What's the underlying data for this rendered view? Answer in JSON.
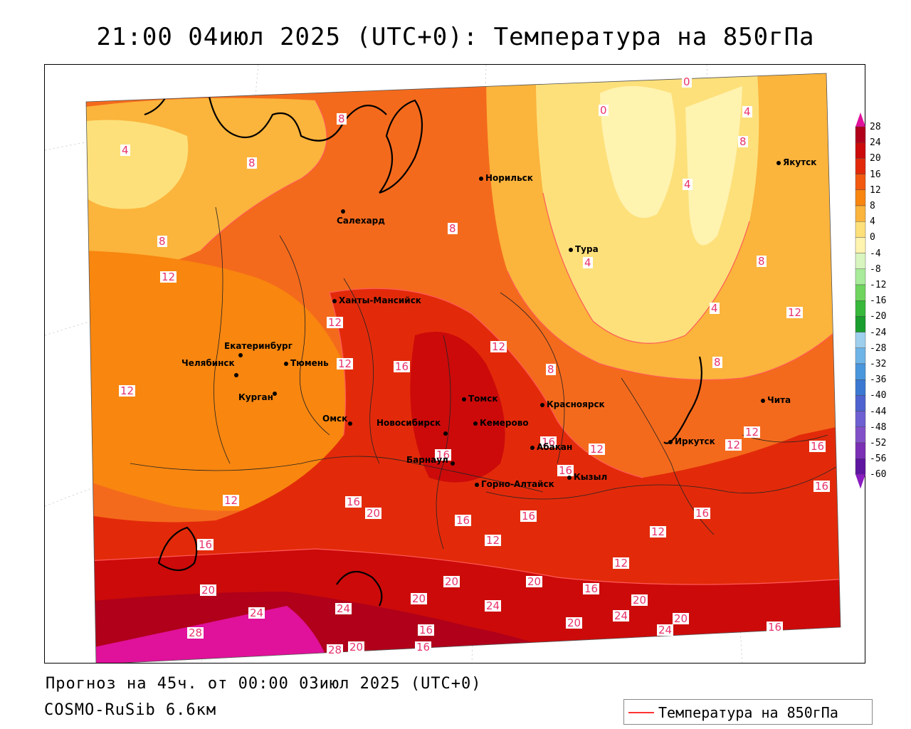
{
  "title": "21:00 04июл 2025 (UTC+0): Температура на 850гПа",
  "forecast_info": "Прогноз на 45ч. от 00:00 03июл 2025 (UTC+0)",
  "model_name": "COSMO-RuSib 6.6км",
  "legend_label": "Температура на 850гПа",
  "colorbar": {
    "ticks": [
      "28",
      "24",
      "20",
      "16",
      "12",
      "8",
      "4",
      "0",
      "-4",
      "-8",
      "-12",
      "-16",
      "-20",
      "-24",
      "-28",
      "-32",
      "-36",
      "-40",
      "-44",
      "-48",
      "-52",
      "-56",
      "-60"
    ],
    "colors": [
      "#b0001a",
      "#cc0a0a",
      "#e22a0a",
      "#f25a0f",
      "#f8860f",
      "#fbb43c",
      "#fde07a",
      "#fff3b0",
      "#d8f5c0",
      "#a8eb9a",
      "#6fd45e",
      "#38b83a",
      "#1a9e2e",
      "#9ed0ee",
      "#6fb4e6",
      "#4a96dc",
      "#3a78d2",
      "#4e63cf",
      "#6e5fd2",
      "#8251c8",
      "#7a2fb4",
      "#5e16a0"
    ],
    "top_color": "#e0119a",
    "bottom_color": "#8a1cc0"
  },
  "cities": [
    {
      "name": "Норильск"
    },
    {
      "name": "Якутск"
    },
    {
      "name": "Салехард"
    },
    {
      "name": "Тура"
    },
    {
      "name": "Ханты-Мансийск"
    },
    {
      "name": "Екатеринбург"
    },
    {
      "name": "Тюмень"
    },
    {
      "name": "Челябинск"
    },
    {
      "name": "Курган"
    },
    {
      "name": "Омск"
    },
    {
      "name": "Новосибирск"
    },
    {
      "name": "Томск"
    },
    {
      "name": "Кемерово"
    },
    {
      "name": "Красноярск"
    },
    {
      "name": "Барнаул"
    },
    {
      "name": "Абакан"
    },
    {
      "name": "Горно-Алтайск"
    },
    {
      "name": "Кызыл"
    },
    {
      "name": "Иркутск"
    },
    {
      "name": "Чита"
    }
  ],
  "contour_labels": [
    "0",
    "0",
    "4",
    "4",
    "4",
    "4",
    "4",
    "8",
    "8",
    "8",
    "8",
    "8",
    "8",
    "8",
    "8",
    "12",
    "12",
    "12",
    "12",
    "12",
    "12",
    "12",
    "12",
    "12",
    "12",
    "12",
    "12",
    "12",
    "16",
    "16",
    "16",
    "16",
    "16",
    "16",
    "16",
    "16",
    "16",
    "16",
    "16",
    "16",
    "16",
    "16",
    "16",
    "20",
    "20",
    "20",
    "20",
    "20",
    "20",
    "20",
    "20",
    "20",
    "24",
    "24",
    "24",
    "24",
    "24",
    "28",
    "28"
  ]
}
